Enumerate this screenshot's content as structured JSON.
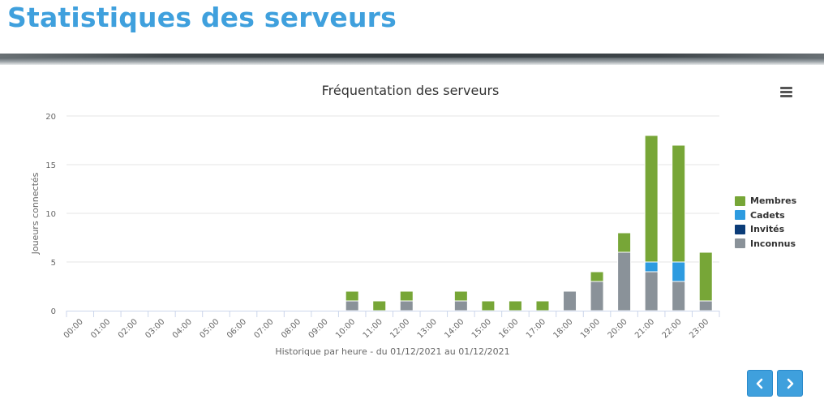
{
  "header": {
    "title": "Statistiques des serveurs"
  },
  "chart_data": {
    "type": "bar",
    "stacked": true,
    "title": "Fréquentation des serveurs",
    "xlabel": "Historique par heure - du 01/12/2021 au 01/12/2021",
    "ylabel": "Joueurs connectés",
    "ylim": [
      0,
      20
    ],
    "yticks": [
      "0",
      "5",
      "10",
      "15",
      "20"
    ],
    "categories": [
      "00:00",
      "01:00",
      "02:00",
      "03:00",
      "04:00",
      "05:00",
      "06:00",
      "07:00",
      "08:00",
      "09:00",
      "10:00",
      "11:00",
      "12:00",
      "13:00",
      "14:00",
      "15:00",
      "16:00",
      "17:00",
      "18:00",
      "19:00",
      "20:00",
      "21:00",
      "22:00",
      "23:00"
    ],
    "series": [
      {
        "name": "Membres",
        "color": "#77a637",
        "values": [
          0,
          0,
          0,
          0,
          0,
          0,
          0,
          0,
          0,
          0,
          1,
          1,
          1,
          0,
          1,
          1,
          1,
          1,
          0,
          1,
          2,
          13,
          12,
          5
        ]
      },
      {
        "name": "Cadets",
        "color": "#2d9be0",
        "values": [
          0,
          0,
          0,
          0,
          0,
          0,
          0,
          0,
          0,
          0,
          0,
          0,
          0,
          0,
          0,
          0,
          0,
          0,
          0,
          0,
          0,
          1,
          2,
          0
        ]
      },
      {
        "name": "Invités",
        "color": "#0b3c78",
        "values": [
          0,
          0,
          0,
          0,
          0,
          0,
          0,
          0,
          0,
          0,
          0,
          0,
          0,
          0,
          0,
          0,
          0,
          0,
          0,
          0,
          0,
          0,
          0,
          0
        ]
      },
      {
        "name": "Inconnus",
        "color": "#8a9299",
        "values": [
          0,
          0,
          0,
          0,
          0,
          0,
          0,
          0,
          0,
          0,
          1,
          0,
          1,
          0,
          1,
          0,
          0,
          0,
          2,
          3,
          6,
          4,
          3,
          1
        ]
      }
    ],
    "legend": "right"
  },
  "icons": {
    "menu": "hamburger-menu-icon",
    "prev": "chevron-left-icon",
    "next": "chevron-right-icon"
  },
  "accent_color": "#3fa0dd"
}
